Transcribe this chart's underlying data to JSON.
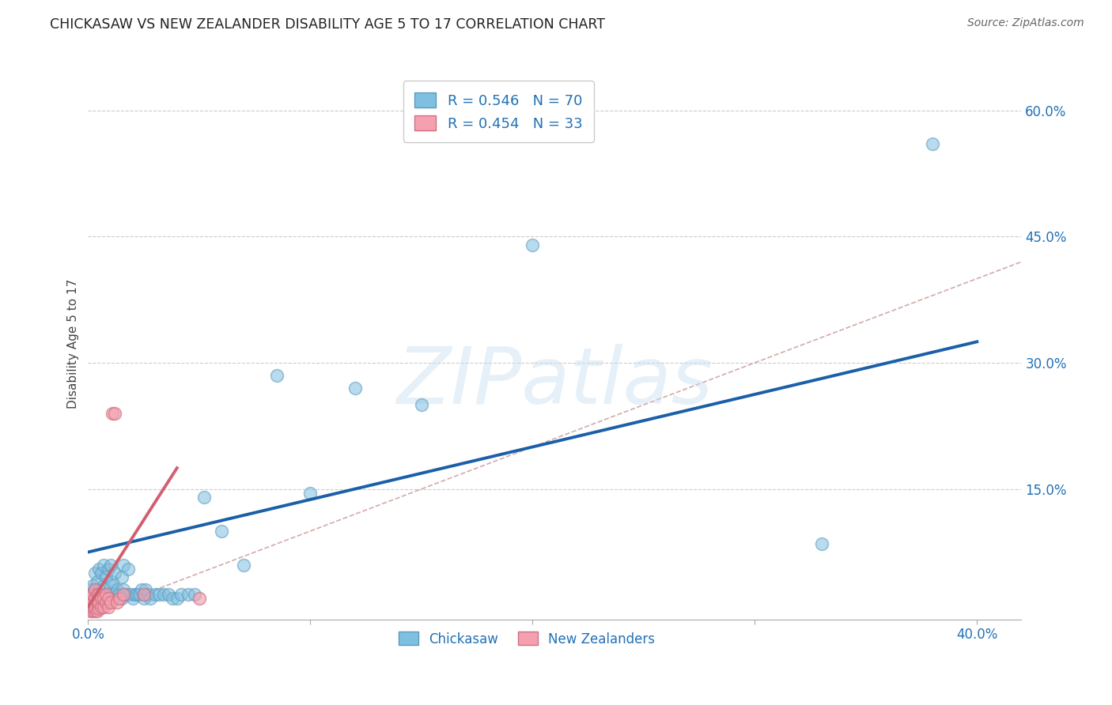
{
  "title": "CHICKASAW VS NEW ZEALANDER DISABILITY AGE 5 TO 17 CORRELATION CHART",
  "source": "Source: ZipAtlas.com",
  "ylabel": "Disability Age 5 to 17",
  "watermark": "ZIPatlas",
  "xlim": [
    0.0,
    0.42
  ],
  "ylim": [
    -0.005,
    0.65
  ],
  "xticks": [
    0.0,
    0.1,
    0.2,
    0.3,
    0.4
  ],
  "xtick_labels": [
    "0.0%",
    "",
    "",
    "",
    "40.0%"
  ],
  "yticks": [
    0.15,
    0.3,
    0.45,
    0.6
  ],
  "ytick_labels": [
    "15.0%",
    "30.0%",
    "45.0%",
    "60.0%"
  ],
  "chickasaw_R": 0.546,
  "chickasaw_N": 70,
  "nz_R": 0.454,
  "nz_N": 33,
  "chickasaw_color": "#7fbfdf",
  "chickasaw_edge": "#5a9abf",
  "nz_color": "#f4a0b0",
  "nz_edge": "#d07080",
  "legend_label1": "Chickasaw",
  "legend_label2": "New Zealanders",
  "chickasaw_scatter_x": [
    0.001,
    0.001,
    0.002,
    0.002,
    0.002,
    0.003,
    0.003,
    0.003,
    0.003,
    0.004,
    0.004,
    0.004,
    0.005,
    0.005,
    0.005,
    0.005,
    0.006,
    0.006,
    0.006,
    0.007,
    0.007,
    0.007,
    0.008,
    0.008,
    0.009,
    0.009,
    0.01,
    0.01,
    0.01,
    0.011,
    0.011,
    0.012,
    0.012,
    0.013,
    0.014,
    0.015,
    0.015,
    0.016,
    0.016,
    0.017,
    0.018,
    0.019,
    0.02,
    0.021,
    0.022,
    0.023,
    0.024,
    0.025,
    0.026,
    0.027,
    0.028,
    0.03,
    0.032,
    0.034,
    0.036,
    0.038,
    0.04,
    0.042,
    0.045,
    0.048,
    0.052,
    0.06,
    0.07,
    0.085,
    0.1,
    0.12,
    0.15,
    0.2,
    0.33,
    0.38
  ],
  "chickasaw_scatter_y": [
    0.02,
    0.03,
    0.008,
    0.025,
    0.035,
    0.01,
    0.02,
    0.03,
    0.05,
    0.015,
    0.025,
    0.04,
    0.01,
    0.02,
    0.03,
    0.055,
    0.015,
    0.025,
    0.05,
    0.02,
    0.035,
    0.06,
    0.025,
    0.045,
    0.025,
    0.055,
    0.015,
    0.035,
    0.06,
    0.02,
    0.04,
    0.025,
    0.05,
    0.03,
    0.025,
    0.02,
    0.045,
    0.03,
    0.06,
    0.025,
    0.055,
    0.025,
    0.02,
    0.025,
    0.025,
    0.025,
    0.03,
    0.02,
    0.03,
    0.025,
    0.02,
    0.025,
    0.025,
    0.025,
    0.025,
    0.02,
    0.02,
    0.025,
    0.025,
    0.025,
    0.14,
    0.1,
    0.06,
    0.285,
    0.145,
    0.27,
    0.25,
    0.44,
    0.085,
    0.56
  ],
  "nz_scatter_x": [
    0.001,
    0.001,
    0.001,
    0.002,
    0.002,
    0.002,
    0.002,
    0.003,
    0.003,
    0.003,
    0.003,
    0.004,
    0.004,
    0.004,
    0.005,
    0.005,
    0.005,
    0.006,
    0.006,
    0.007,
    0.007,
    0.008,
    0.008,
    0.009,
    0.009,
    0.01,
    0.011,
    0.012,
    0.013,
    0.014,
    0.016,
    0.025,
    0.05
  ],
  "nz_scatter_y": [
    0.005,
    0.01,
    0.02,
    0.005,
    0.01,
    0.015,
    0.025,
    0.005,
    0.01,
    0.02,
    0.03,
    0.005,
    0.015,
    0.025,
    0.008,
    0.015,
    0.025,
    0.01,
    0.02,
    0.01,
    0.02,
    0.015,
    0.025,
    0.01,
    0.02,
    0.015,
    0.24,
    0.24,
    0.015,
    0.02,
    0.025,
    0.025,
    0.02
  ],
  "diagonal_line_x": [
    0.0,
    0.42
  ],
  "diagonal_line_y": [
    0.0,
    0.42
  ],
  "diagonal_color": "#d0a0a0",
  "chickasaw_trend_x": [
    0.0,
    0.4
  ],
  "chickasaw_trend_y": [
    0.075,
    0.325
  ],
  "nz_trend_x": [
    0.0,
    0.04
  ],
  "nz_trend_y": [
    0.01,
    0.175
  ],
  "trend_blue": "#1a5fa8",
  "trend_pink": "#d06070"
}
